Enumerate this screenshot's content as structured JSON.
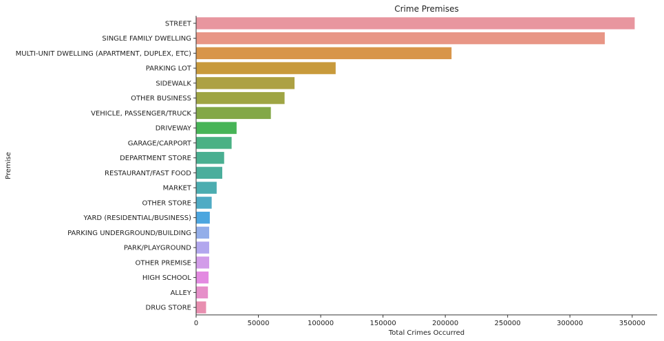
{
  "chart_data": {
    "type": "bar",
    "orientation": "horizontal",
    "title": "Crime Premises",
    "xlabel": "Total Crimes Occurred",
    "ylabel": "Premise",
    "xlim": [
      0,
      370000
    ],
    "xticks": [
      0,
      50000,
      100000,
      150000,
      200000,
      250000,
      300000,
      350000
    ],
    "grid": false,
    "categories": [
      "STREET",
      "SINGLE FAMILY DWELLING",
      "MULTI-UNIT DWELLING (APARTMENT, DUPLEX, ETC)",
      "PARKING LOT",
      "SIDEWALK",
      "OTHER BUSINESS",
      "VEHICLE, PASSENGER/TRUCK",
      "DRIVEWAY",
      "GARAGE/CARPORT",
      "DEPARTMENT STORE",
      "RESTAURANT/FAST FOOD",
      "MARKET",
      "OTHER STORE",
      "YARD (RESIDENTIAL/BUSINESS)",
      "PARKING UNDERGROUND/BUILDING",
      "PARK/PLAYGROUND",
      "OTHER PREMISE",
      "HIGH SCHOOL",
      "ALLEY",
      "DRUG STORE"
    ],
    "values": [
      352000,
      328000,
      205000,
      112000,
      79000,
      71000,
      60000,
      32500,
      28500,
      22500,
      21000,
      16500,
      12500,
      11000,
      10500,
      10500,
      10500,
      10000,
      9500,
      8000
    ],
    "colors": [
      "#e8969f",
      "#e89686",
      "#d8954a",
      "#c89a3c",
      "#ada143",
      "#9fa544",
      "#83a847",
      "#47b457",
      "#4ab184",
      "#4aaf91",
      "#4bae9c",
      "#4cadb0",
      "#4fabc4",
      "#4ca6df",
      "#93aee9",
      "#b2a7ee",
      "#d29ce9",
      "#e38ae1",
      "#e68fc9",
      "#e88fb0"
    ]
  }
}
